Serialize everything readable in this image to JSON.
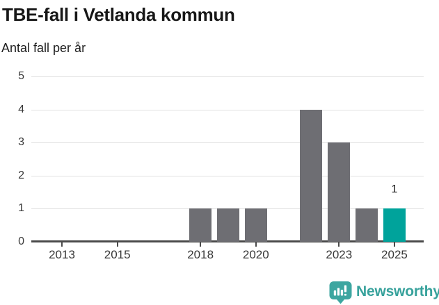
{
  "header": {
    "title": "TBE-fall i Vetlanda kommun",
    "subtitle": "Antal fall per år"
  },
  "chart_data": {
    "type": "bar",
    "title": "TBE-fall i Vetlanda kommun",
    "ylabel_note": "Antal fall per år",
    "categories": [
      2012,
      2013,
      2014,
      2015,
      2016,
      2017,
      2018,
      2019,
      2020,
      2021,
      2022,
      2023,
      2024,
      2025
    ],
    "values": [
      0,
      0,
      0,
      0,
      0,
      0,
      1,
      1,
      1,
      0,
      4,
      3,
      1,
      1
    ],
    "x_ticks": [
      2013,
      2015,
      2018,
      2020,
      2023,
      2025
    ],
    "y_ticks": [
      0,
      1,
      2,
      3,
      4,
      5
    ],
    "ylim": [
      0,
      5
    ],
    "grid": "horizontal",
    "legend": "none",
    "bar_color": "#6e6e73",
    "highlight_color": "#00a39b",
    "highlight_year": 2025,
    "data_labels": [
      {
        "year": 2025,
        "label": "1",
        "value": 1
      }
    ]
  },
  "footer": {
    "brand": "Newsworthy",
    "brand_color": "#38a29c"
  }
}
